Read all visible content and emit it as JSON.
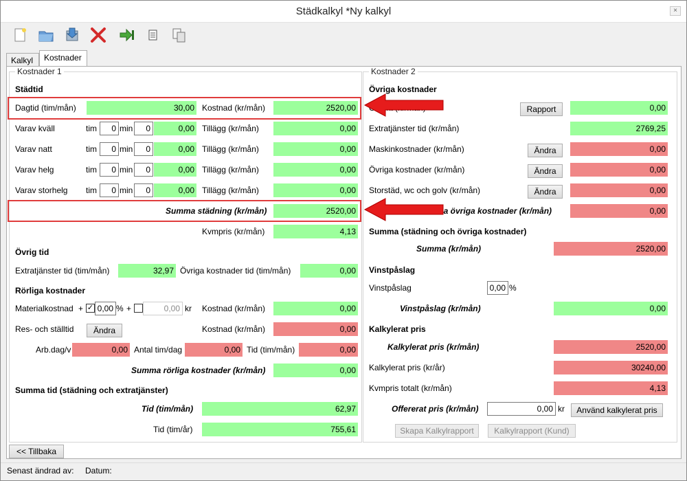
{
  "window": {
    "title": "Städkalkyl *Ny kalkyl",
    "close_glyph": "×"
  },
  "toolbar": {
    "icons": [
      "new-document-icon",
      "open-folder-icon",
      "save-icon",
      "delete-icon",
      "export-icon",
      "report-icon",
      "copy-icon"
    ]
  },
  "tabs": [
    {
      "label": "Kalkyl"
    },
    {
      "label": "Kostnader"
    }
  ],
  "left": {
    "group_label": "Kostnader 1",
    "stadtid_title": "Städtid",
    "dagtid_label": "Dagtid (tim/mån)",
    "dagtid_value": "30,00",
    "kostnad_label": "Kostnad (kr/mån)",
    "dagtid_kostnad": "2520,00",
    "tim_label": "tim",
    "min_label": "min",
    "tillagg_label": "Tillägg (kr/mån)",
    "rows": [
      {
        "label": "Varav kväll",
        "tim": "0",
        "min": "0",
        "value": "0,00",
        "tillagg": "0,00"
      },
      {
        "label": "Varav natt",
        "tim": "0",
        "min": "0",
        "value": "0,00",
        "tillagg": "0,00"
      },
      {
        "label": "Varav helg",
        "tim": "0",
        "min": "0",
        "value": "0,00",
        "tillagg": "0,00"
      },
      {
        "label": "Varav storhelg",
        "tim": "0",
        "min": "0",
        "value": "0,00",
        "tillagg": "0,00"
      }
    ],
    "summa_stadning_label": "Summa städning (kr/mån)",
    "summa_stadning_value": "2520,00",
    "kvmpris_label": "Kvmpris (kr/mån)",
    "kvmpris_value": "4,13",
    "ovrig_tid_title": "Övrig tid",
    "extratjanster_label": "Extratjänster tid (tim/mån)",
    "extratjanster_value": "32,97",
    "ovriga_kostnader_tid_label": "Övriga kostnader tid (tim/mån)",
    "ovriga_kostnader_tid_value": "0,00",
    "rorliga_title": "Rörliga kostnader",
    "material_label": "Materialkostnad",
    "plus": "+",
    "check_mark": "✓",
    "material_percent": "0,00",
    "percent_sign": "%",
    "material_kr": "0,00",
    "kr_label": "kr",
    "material_kostnad": "0,00",
    "res_label": "Res- och ställtid",
    "andra_label": "Ändra",
    "res_kostnad": "0,00",
    "arbdag_label": "Arb.dag/v",
    "arbdag_value": "0,00",
    "antal_label": "Antal tim/dag",
    "antal_value": "0,00",
    "tid_label": "Tid (tim/mån)",
    "tid_value": "0,00",
    "summa_rorliga_label": "Summa rörliga kostnader (kr/mån)",
    "summa_rorliga_value": "0,00",
    "summa_tid_title": "Summa tid (städning och extratjänster)",
    "tid_manad_label": "Tid (tim/mån)",
    "tid_manad_value": "62,97",
    "tid_ar_label": "Tid (tim/år)",
    "tid_ar_value": "755,61"
  },
  "right": {
    "group_label": "Kostnader 2",
    "ovriga_title": "Övriga kostnader",
    "hidden_row_label": "Objekt (kr/mån)",
    "rapport_label": "Rapport",
    "hidden_row_value": "0,00",
    "extratjanster_label": "Extratjänster tid (kr/mån)",
    "extratjanster_value": "2769,25",
    "rows": [
      {
        "label": "Maskinkostnader (kr/mån)",
        "button": "Ändra",
        "value": "0,00"
      },
      {
        "label": "Övriga kostnader (kr/mån)",
        "button": "Ändra",
        "value": "0,00"
      },
      {
        "label": "Storstäd, wc och golv (kr/mån)",
        "button": "Ändra",
        "value": "0,00"
      }
    ],
    "summa_ovriga_label": "Summa övriga kostnader (kr/mån)",
    "summa_ovriga_value": "0,00",
    "summa_total_title": "Summa (städning och övriga kostnader)",
    "summa_label": "Summa (kr/mån)",
    "summa_value": "2520,00",
    "vinst_title": "Vinstpåslag",
    "vinst_label": "Vinstpåslag",
    "vinst_percent": "0,00",
    "percent_sign": "%",
    "vinst_kr_label": "Vinstpåslag (kr/mån)",
    "vinst_kr_value": "0,00",
    "kalk_title": "Kalkylerat pris",
    "kalk_man_label": "Kalkylerat pris (kr/mån)",
    "kalk_man_value": "2520,00",
    "kalk_ar_label": "Kalkylerat pris (kr/år)",
    "kalk_ar_value": "30240,00",
    "kvm_total_label": "Kvmpris totalt (kr/mån)",
    "kvm_total_value": "4,13",
    "offert_label": "Offererat pris (kr/mån)",
    "offert_value": "0,00",
    "kr_label": "kr",
    "anvand_label": "Använd kalkylerat pris",
    "skapa_label": "Skapa Kalkylrapport",
    "kund_label": "Kalkylrapport (Kund)"
  },
  "footer": {
    "back_label": "<< Tillbaka",
    "senast_label": "Senast ändrad av:",
    "datum_label": "Datum:"
  },
  "colors": {
    "green": "#9cff9c",
    "red": "#f08787",
    "highlight": "#e03c3c"
  }
}
